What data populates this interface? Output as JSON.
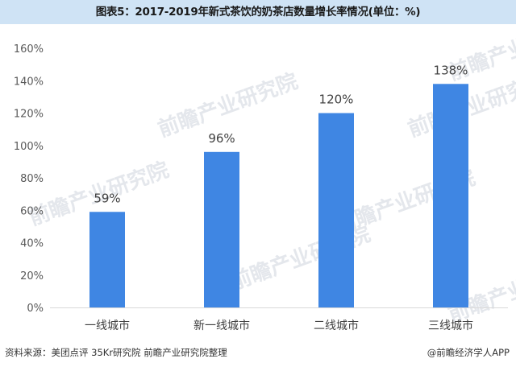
{
  "title": "图表5：2017-2019年新式茶饮的奶茶店数量增长率情况(单位：%)",
  "footer": {
    "source": "资料来源：美团点评 35Kr研究院 前瞻产业研究院整理",
    "brand": "@前瞻经济学人APP"
  },
  "watermark": "前瞻产业研究院",
  "colors": {
    "bar": "#3f86e3",
    "axis": "#d9d9d9",
    "title_band": "#cfe3f5"
  },
  "chart_data": {
    "type": "bar",
    "title": "图表5：2017-2019年新式茶饮的奶茶店数量增长率情况(单位：%)",
    "categories": [
      "一线城市",
      "新一线城市",
      "二线城市",
      "三线城市"
    ],
    "values": [
      59,
      96,
      120,
      138
    ],
    "data_labels": [
      "59%",
      "96%",
      "120%",
      "138%"
    ],
    "unit": "%",
    "ylim": [
      0,
      160
    ],
    "yticks": [
      0,
      20,
      40,
      60,
      80,
      100,
      120,
      140,
      160
    ],
    "ytick_labels": [
      "0%",
      "20%",
      "40%",
      "60%",
      "80%",
      "100%",
      "120%",
      "140%",
      "160%"
    ],
    "xlabel": "",
    "ylabel": "",
    "grid": false,
    "legend": "none"
  }
}
